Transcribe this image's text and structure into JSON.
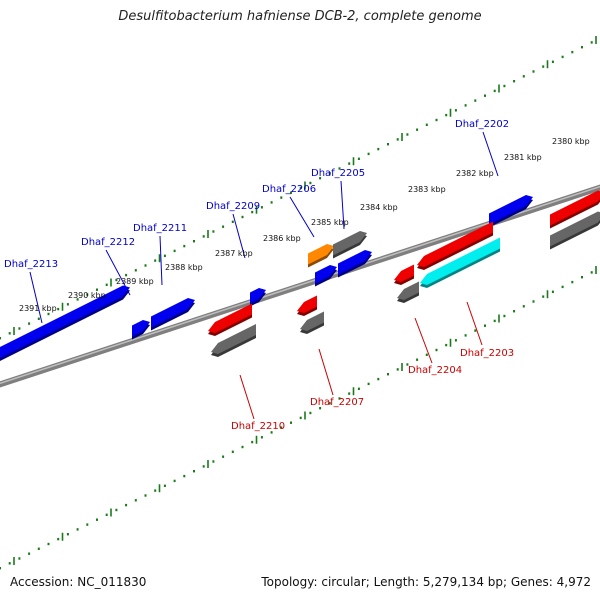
{
  "title": "Desulfitobacterium hafniense DCB-2, complete genome",
  "footer": {
    "accession": "Accession: NC_011830",
    "summary": "Topology: circular; Length: 5,279,134 bp; Genes: 4,972"
  },
  "colors": {
    "plus_label": "#0000cc",
    "minus_label": "#cc0000",
    "backbone": "#7f7f7f",
    "ticks": "#1a7a1a",
    "gene_blue": "#0000ee",
    "gene_red": "#ee0000",
    "gene_gray": "#666666",
    "gene_orange": "#ff8800",
    "gene_cyan": "#00eeee"
  },
  "tick_labels": [
    "2380 kbp",
    "2381 kbp",
    "2382 kbp",
    "2383 kbp",
    "2384 kbp",
    "2385 kbp",
    "2386 kbp",
    "2387 kbp",
    "2388 kbp",
    "2389 kbp",
    "2390 kbp",
    "2391 kbp"
  ],
  "genes_plus": [
    "Dhaf_2202",
    "Dhaf_2205",
    "Dhaf_2206",
    "Dhaf_2209",
    "Dhaf_2211",
    "Dhaf_2212",
    "Dhaf_2213"
  ],
  "genes_minus": [
    "Dhaf_2203",
    "Dhaf_2204",
    "Dhaf_2207",
    "Dhaf_2210"
  ]
}
